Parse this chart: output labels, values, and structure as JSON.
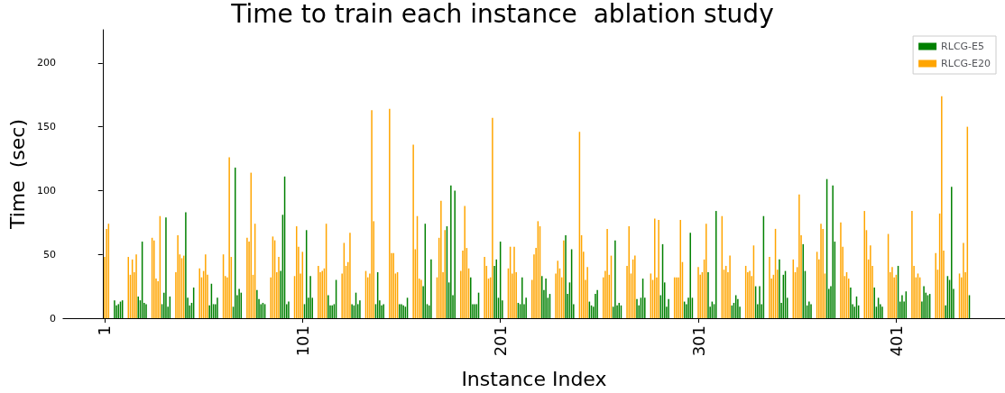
{
  "chart_data": {
    "type": "bar",
    "title": "Time to train each instance  ablation study",
    "xlabel": "Instance Index",
    "ylabel": "Time  (sec)",
    "xlim": [
      -20,
      456
    ],
    "xticks": [
      1,
      101,
      201,
      301,
      401
    ],
    "ylim": [
      0,
      226
    ],
    "yticks": [
      0,
      50,
      100,
      150,
      200
    ],
    "legend": "top right",
    "series": [
      {
        "name": "RLCG-E5",
        "color": "#008000",
        "x": [
          6,
          7,
          8,
          9,
          10,
          18,
          19,
          20,
          21,
          22,
          30,
          31,
          32,
          33,
          34,
          42,
          43,
          44,
          45,
          46,
          54,
          55,
          56,
          57,
          58,
          66,
          67,
          68,
          69,
          70,
          78,
          79,
          80,
          81,
          82,
          90,
          91,
          92,
          93,
          94,
          102,
          103,
          104,
          105,
          106,
          114,
          115,
          116,
          117,
          118,
          126,
          127,
          128,
          129,
          130,
          138,
          139,
          140,
          141,
          142,
          150,
          151,
          152,
          153,
          154,
          162,
          163,
          164,
          165,
          166,
          174,
          175,
          176,
          177,
          178,
          186,
          187,
          188,
          189,
          190,
          198,
          199,
          200,
          201,
          202,
          210,
          211,
          212,
          213,
          214,
          222,
          223,
          224,
          225,
          226,
          234,
          235,
          236,
          237,
          238,
          246,
          247,
          248,
          249,
          250,
          258,
          259,
          260,
          261,
          262,
          270,
          271,
          272,
          273,
          274,
          282,
          283,
          284,
          285,
          286,
          294,
          295,
          296,
          297,
          298,
          306,
          307,
          308,
          309,
          310,
          318,
          319,
          320,
          321,
          322,
          330,
          331,
          332,
          333,
          334,
          342,
          343,
          344,
          345,
          346,
          354,
          355,
          356,
          357,
          358,
          366,
          367,
          368,
          369,
          370,
          378,
          379,
          380,
          381,
          382,
          390,
          391,
          392,
          393,
          394,
          402,
          403,
          404,
          405,
          406,
          414,
          415,
          416,
          417,
          418,
          426,
          427,
          428,
          429,
          430,
          438
        ],
        "values": [
          14,
          10,
          11,
          13,
          14,
          17,
          14,
          60,
          12,
          11,
          11,
          20,
          79,
          9,
          17,
          83,
          16,
          10,
          12,
          24,
          10,
          27,
          11,
          11,
          16,
          9,
          118,
          18,
          23,
          20,
          22,
          15,
          11,
          12,
          11,
          37,
          81,
          111,
          11,
          13,
          11,
          69,
          16,
          33,
          16,
          18,
          10,
          10,
          11,
          30,
          11,
          10,
          20,
          11,
          14,
          11,
          36,
          14,
          10,
          11,
          11,
          11,
          10,
          9,
          16,
          25,
          74,
          11,
          10,
          46,
          72,
          28,
          104,
          18,
          100,
          32,
          11,
          11,
          11,
          20,
          41,
          46,
          16,
          60,
          14,
          12,
          11,
          32,
          11,
          16,
          33,
          22,
          31,
          16,
          19,
          65,
          19,
          28,
          54,
          11,
          13,
          10,
          9,
          19,
          22,
          9,
          61,
          10,
          12,
          10,
          15,
          10,
          16,
          31,
          16,
          18,
          58,
          28,
          9,
          15,
          13,
          11,
          16,
          67,
          16,
          36,
          9,
          13,
          11,
          84,
          10,
          12,
          18,
          15,
          9,
          25,
          11,
          25,
          11,
          80,
          46,
          12,
          34,
          37,
          16,
          58,
          37,
          10,
          13,
          11,
          109,
          23,
          25,
          104,
          60,
          24,
          11,
          9,
          17,
          10,
          24,
          9,
          16,
          11,
          9,
          41,
          13,
          18,
          13,
          21,
          13,
          25,
          20,
          18,
          19,
          10,
          33,
          30,
          103,
          23,
          18
        ]
      },
      {
        "name": "RLCG-E20",
        "color": "#ffa500",
        "x": [
          1,
          2,
          3,
          13,
          14,
          15,
          16,
          17,
          25,
          26,
          27,
          28,
          29,
          37,
          38,
          39,
          40,
          41,
          49,
          50,
          51,
          52,
          53,
          61,
          62,
          63,
          64,
          65,
          73,
          74,
          75,
          76,
          77,
          85,
          86,
          87,
          88,
          89,
          97,
          98,
          99,
          100,
          101,
          109,
          110,
          111,
          112,
          113,
          121,
          122,
          123,
          124,
          125,
          133,
          134,
          135,
          136,
          137,
          145,
          146,
          147,
          148,
          149,
          157,
          158,
          159,
          160,
          161,
          169,
          170,
          171,
          172,
          173,
          181,
          182,
          183,
          184,
          185,
          193,
          194,
          195,
          196,
          197,
          205,
          206,
          207,
          208,
          209,
          217,
          218,
          219,
          220,
          221,
          229,
          230,
          231,
          232,
          233,
          241,
          242,
          243,
          244,
          245,
          253,
          254,
          255,
          256,
          257,
          265,
          266,
          267,
          268,
          269,
          277,
          278,
          279,
          280,
          281,
          289,
          290,
          291,
          292,
          293,
          301,
          302,
          303,
          304,
          305,
          313,
          314,
          315,
          316,
          317,
          325,
          326,
          327,
          328,
          329,
          337,
          338,
          339,
          340,
          341,
          349,
          350,
          351,
          352,
          353,
          361,
          362,
          363,
          364,
          365,
          373,
          374,
          375,
          376,
          377,
          385,
          386,
          387,
          388,
          389,
          397,
          398,
          399,
          400,
          401,
          409,
          410,
          411,
          412,
          413,
          421,
          422,
          423,
          424,
          425,
          433,
          434,
          435,
          436,
          437
        ],
        "values": [
          48,
          70,
          74,
          48,
          34,
          46,
          36,
          50,
          63,
          61,
          31,
          29,
          80,
          36,
          65,
          50,
          47,
          49,
          39,
          32,
          37,
          50,
          34,
          50,
          33,
          32,
          126,
          48,
          63,
          60,
          114,
          34,
          74,
          32,
          64,
          61,
          36,
          48,
          33,
          72,
          56,
          35,
          52,
          41,
          36,
          37,
          39,
          74,
          35,
          59,
          41,
          44,
          67,
          37,
          32,
          35,
          163,
          76,
          164,
          51,
          51,
          35,
          36,
          136,
          54,
          80,
          31,
          30,
          32,
          63,
          92,
          36,
          69,
          37,
          53,
          88,
          55,
          39,
          48,
          41,
          31,
          32,
          157,
          39,
          56,
          35,
          56,
          36,
          30,
          50,
          55,
          76,
          72,
          35,
          45,
          39,
          32,
          61,
          146,
          65,
          52,
          30,
          40,
          32,
          37,
          70,
          34,
          49,
          41,
          72,
          35,
          46,
          49,
          35,
          30,
          78,
          32,
          77,
          32,
          32,
          32,
          77,
          44,
          40,
          34,
          36,
          46,
          74,
          80,
          38,
          41,
          36,
          49,
          41,
          36,
          37,
          33,
          57,
          48,
          31,
          34,
          70,
          38,
          46,
          36,
          40,
          97,
          65,
          52,
          46,
          74,
          70,
          35,
          75,
          56,
          33,
          36,
          31,
          84,
          69,
          46,
          57,
          41,
          66,
          36,
          40,
          32,
          34,
          84,
          41,
          32,
          35,
          32,
          51,
          38,
          82,
          174,
          53,
          35,
          32,
          59,
          36,
          150
        ]
      }
    ]
  }
}
